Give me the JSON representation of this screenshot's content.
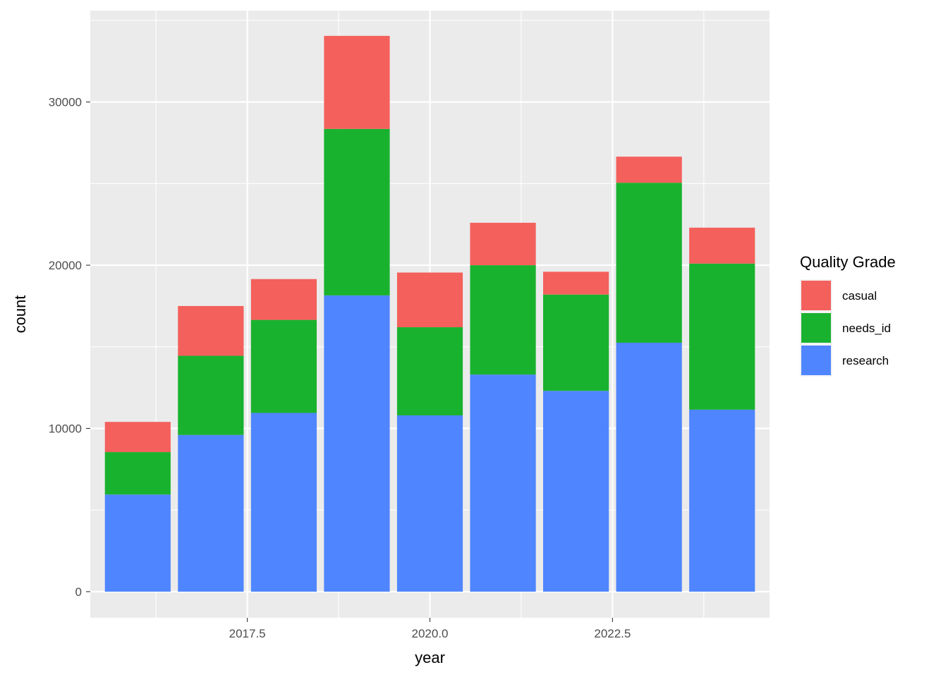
{
  "chart_data": {
    "type": "bar",
    "stacked": true,
    "x": [
      2016,
      2017,
      2018,
      2019,
      2020,
      2021,
      2022,
      2023,
      2024
    ],
    "series": [
      {
        "name": "research",
        "color": "#4F85FF",
        "values": [
          5950,
          9600,
          10950,
          18150,
          10800,
          13300,
          12300,
          15250,
          11150
        ]
      },
      {
        "name": "needs_id",
        "color": "#19B22F",
        "values": [
          2600,
          4850,
          5700,
          10200,
          5400,
          6700,
          5900,
          9800,
          8950
        ]
      },
      {
        "name": "casual",
        "color": "#F4605C",
        "values": [
          1850,
          3050,
          2500,
          5700,
          3350,
          2600,
          1400,
          1600,
          2200
        ]
      }
    ],
    "xlabel": "year",
    "ylabel": "count",
    "xlim": [
      2015.35,
      2024.65
    ],
    "ylim": [
      -1600,
      35600
    ],
    "x_ticks": [
      2017.5,
      2020.0,
      2022.5
    ],
    "x_tick_labels": [
      "2017.5",
      "2020.0",
      "2022.5"
    ],
    "y_ticks": [
      0,
      10000,
      20000,
      30000
    ],
    "y_tick_labels": [
      "0",
      "10000",
      "20000",
      "30000"
    ],
    "grid": true,
    "legend": {
      "title": "Quality Grade",
      "position": "right",
      "entries": [
        "casual",
        "needs_id",
        "research"
      ]
    }
  }
}
